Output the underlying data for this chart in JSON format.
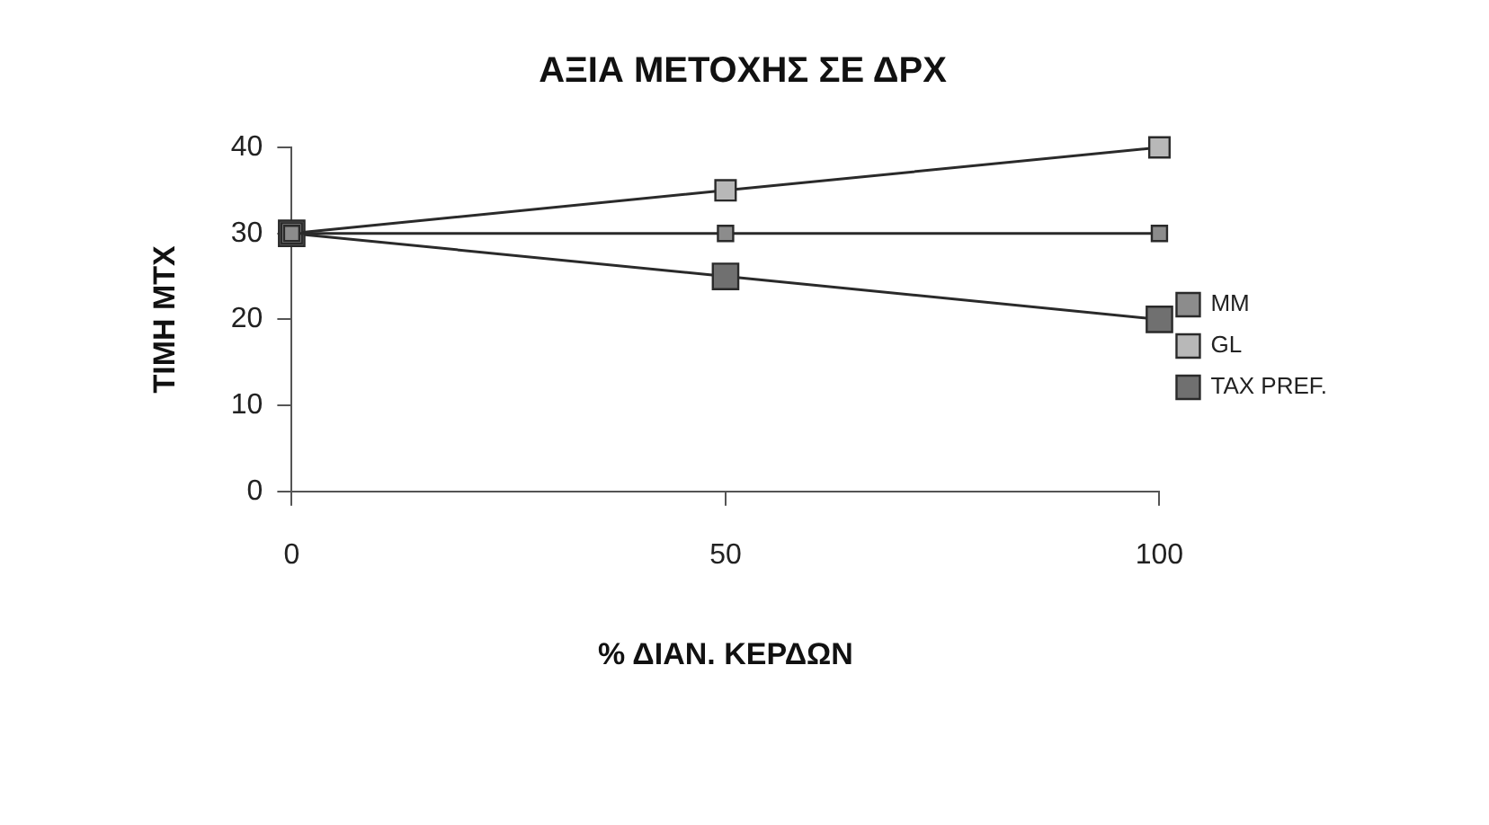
{
  "chart_data": {
    "type": "line",
    "title": "ΑΞΙΑ ΜΕΤΟΧΗΣ ΣΕ ΔΡΧ",
    "xlabel": "% ΔΙΑΝ. ΚΕΡΔΩΝ",
    "ylabel": "ΤΙΜΗ ΜΤΧ",
    "x": [
      0,
      50,
      100
    ],
    "series": [
      {
        "name": "MM",
        "color": "#8c8c8c",
        "values": [
          30,
          30,
          30
        ]
      },
      {
        "name": "GL",
        "color": "#b8b8b8",
        "values": [
          30,
          35,
          40
        ]
      },
      {
        "name": "TAX PREF.",
        "color": "#707070",
        "values": [
          30,
          25,
          20
        ]
      }
    ],
    "xlim": [
      0,
      100
    ],
    "xticks": [
      0,
      50,
      100
    ],
    "ylim": [
      0,
      40
    ],
    "yticks": [
      0,
      10,
      20,
      30,
      40
    ],
    "grid": false,
    "legend": "right",
    "marker": "square",
    "line_style": "solid"
  }
}
